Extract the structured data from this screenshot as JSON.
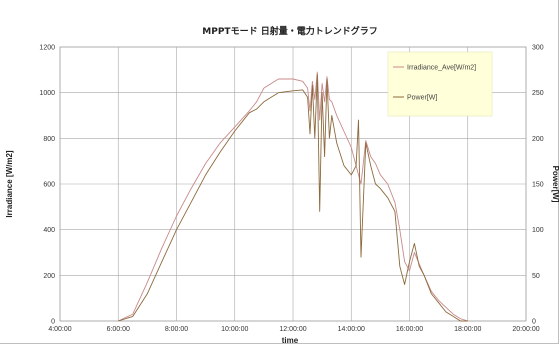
{
  "chart_data": {
    "type": "line",
    "title": "MPPTモード 日射量・電力トレンドグラフ",
    "xlabel": "time",
    "ylabel": "Irradiance [W/m2]",
    "y2label": "Power[W]",
    "x_ticks": [
      "4:00:00",
      "6:00:00",
      "8:00:00",
      "10:00:00",
      "12:00:00",
      "14:00:00",
      "16:00:00",
      "18:00:00",
      "20:00:00"
    ],
    "xlim": [
      "4:00:00",
      "20:00:00"
    ],
    "ylim": [
      0,
      1200
    ],
    "y_ticks": [
      0,
      200,
      400,
      600,
      800,
      1000,
      1200
    ],
    "y2lim": [
      0,
      300
    ],
    "y2_ticks": [
      0,
      50,
      100,
      150,
      200,
      250,
      300
    ],
    "grid": true,
    "legend_position": "top-right",
    "series": [
      {
        "name": "Irradiance_Ave[W/m2]",
        "axis": "left",
        "color": "#c88a8a",
        "points": [
          [
            "6:00",
            0
          ],
          [
            "6:30",
            30
          ],
          [
            "7:00",
            170
          ],
          [
            "7:30",
            320
          ],
          [
            "8:00",
            460
          ],
          [
            "8:30",
            580
          ],
          [
            "9:00",
            690
          ],
          [
            "9:30",
            780
          ],
          [
            "10:00",
            850
          ],
          [
            "10:30",
            920
          ],
          [
            "10:45",
            960
          ],
          [
            "11:00",
            1020
          ],
          [
            "11:30",
            1060
          ],
          [
            "12:00",
            1060
          ],
          [
            "12:20",
            1050
          ],
          [
            "12:30",
            1020
          ],
          [
            "12:35",
            920
          ],
          [
            "12:40",
            1050
          ],
          [
            "12:45",
            970
          ],
          [
            "12:50",
            1090
          ],
          [
            "12:55",
            880
          ],
          [
            "13:00",
            1040
          ],
          [
            "13:05",
            960
          ],
          [
            "13:10",
            1070
          ],
          [
            "13:15",
            970
          ],
          [
            "13:20",
            960
          ],
          [
            "13:30",
            900
          ],
          [
            "13:45",
            830
          ],
          [
            "14:00",
            760
          ],
          [
            "14:15",
            640
          ],
          [
            "14:20",
            600
          ],
          [
            "14:30",
            790
          ],
          [
            "14:40",
            720
          ],
          [
            "14:50",
            690
          ],
          [
            "15:00",
            640
          ],
          [
            "15:15",
            600
          ],
          [
            "15:30",
            520
          ],
          [
            "15:40",
            400
          ],
          [
            "15:50",
            260
          ],
          [
            "16:00",
            220
          ],
          [
            "16:10",
            300
          ],
          [
            "16:20",
            250
          ],
          [
            "16:30",
            200
          ],
          [
            "16:45",
            130
          ],
          [
            "17:00",
            90
          ],
          [
            "17:15",
            60
          ],
          [
            "17:30",
            30
          ],
          [
            "17:45",
            10
          ],
          [
            "18:00",
            0
          ]
        ]
      },
      {
        "name": "Power[W]",
        "axis": "right",
        "color": "#8c6a3c",
        "points": [
          [
            "6:00",
            0
          ],
          [
            "6:30",
            5
          ],
          [
            "7:00",
            30
          ],
          [
            "7:30",
            65
          ],
          [
            "8:00",
            100
          ],
          [
            "8:30",
            130
          ],
          [
            "9:00",
            160
          ],
          [
            "9:30",
            185
          ],
          [
            "10:00",
            208
          ],
          [
            "10:30",
            228
          ],
          [
            "10:45",
            232
          ],
          [
            "11:00",
            240
          ],
          [
            "11:30",
            250
          ],
          [
            "12:00",
            252
          ],
          [
            "12:20",
            253
          ],
          [
            "12:30",
            245
          ],
          [
            "12:35",
            205
          ],
          [
            "12:40",
            258
          ],
          [
            "12:45",
            200
          ],
          [
            "12:50",
            270
          ],
          [
            "12:55",
            120
          ],
          [
            "13:00",
            250
          ],
          [
            "13:05",
            180
          ],
          [
            "13:10",
            265
          ],
          [
            "13:15",
            200
          ],
          [
            "13:20",
            225
          ],
          [
            "13:30",
            195
          ],
          [
            "13:45",
            170
          ],
          [
            "14:00",
            160
          ],
          [
            "14:10",
            170
          ],
          [
            "14:15",
            220
          ],
          [
            "14:20",
            70
          ],
          [
            "14:30",
            195
          ],
          [
            "14:40",
            170
          ],
          [
            "14:50",
            150
          ],
          [
            "15:00",
            145
          ],
          [
            "15:15",
            135
          ],
          [
            "15:30",
            120
          ],
          [
            "15:40",
            60
          ],
          [
            "15:50",
            40
          ],
          [
            "16:00",
            65
          ],
          [
            "16:10",
            85
          ],
          [
            "16:20",
            60
          ],
          [
            "16:30",
            50
          ],
          [
            "16:45",
            30
          ],
          [
            "17:00",
            20
          ],
          [
            "17:15",
            10
          ],
          [
            "17:30",
            5
          ],
          [
            "17:45",
            0
          ],
          [
            "18:00",
            0
          ]
        ]
      }
    ]
  }
}
